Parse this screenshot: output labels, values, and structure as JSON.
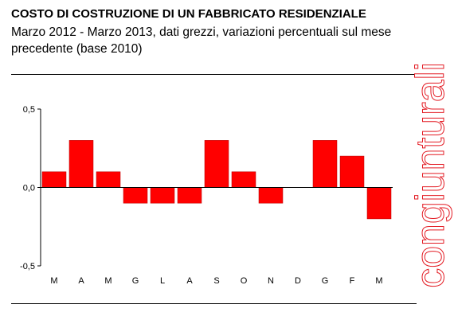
{
  "header": {
    "title": "COSTO DI COSTRUZIONE DI UN FABBRICATO RESIDENZIALE",
    "subtitle": "Marzo 2012 - Marzo 2013, dati grezzi, variazioni percentuali sul mese precedente (base 2010)"
  },
  "side_label": "congiunturali",
  "colors": {
    "bar": "#ff0000",
    "bar_stroke": "#c00000",
    "side_label": "#e31b23"
  },
  "chart_data": {
    "type": "bar",
    "title": "COSTO DI COSTRUZIONE DI UN FABBRICATO RESIDENZIALE",
    "subtitle": "Marzo 2012 - Marzo 2013, dati grezzi, variazioni percentuali sul mese precedente (base 2010)",
    "categories": [
      "M",
      "A",
      "M",
      "G",
      "L",
      "A",
      "S",
      "O",
      "N",
      "D",
      "G",
      "F",
      "M"
    ],
    "values": [
      0.1,
      0.3,
      0.1,
      -0.1,
      -0.1,
      -0.1,
      0.3,
      0.1,
      -0.1,
      0.0,
      0.3,
      0.2,
      -0.2
    ],
    "yticks": [
      "0,5",
      "0,0",
      "-0,5"
    ],
    "ylim": [
      -0.5,
      0.5
    ],
    "grid": false,
    "legend": "none",
    "xlabel": "",
    "ylabel": ""
  }
}
